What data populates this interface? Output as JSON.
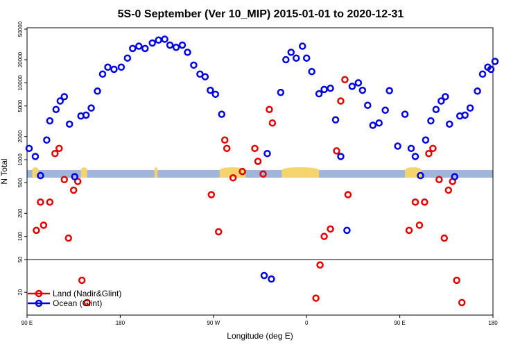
{
  "chart_data": {
    "type": "scatter",
    "title": "5S-0 September (Ver 10_MIP)   2015-01-01 to 2020-12-31",
    "xlabel": "Longitude (deg E)",
    "ylabel": "N Total",
    "x_ticks": [
      {
        "label": "90 E",
        "lon": 90
      },
      {
        "label": "180",
        "lon": 180
      },
      {
        "label": "90 W",
        "lon": 270
      },
      {
        "label": "0",
        "lon": 360
      },
      {
        "label": "90 E",
        "lon": 450
      },
      {
        "label": "180",
        "lon": 540
      }
    ],
    "xlim": [
      90,
      540
    ],
    "y_ticks_upper": [
      "100",
      "200",
      "500",
      "1000",
      "2000",
      "5000",
      "10000",
      "20000",
      "50000"
    ],
    "y_ticks_lower": [
      "20",
      "50"
    ],
    "y_scale": "log",
    "ylim_upper": [
      50,
      50000
    ],
    "ylim_lower": [
      11,
      50
    ],
    "grid": false,
    "legend_position": "bottom-left",
    "land_band_color": "#f5d470",
    "ocean_band_color": "#9fb5da",
    "land_band_segments": [
      [
        95,
        101
      ],
      [
        142,
        148
      ],
      [
        213,
        216
      ],
      [
        276,
        301
      ],
      [
        336,
        372
      ],
      [
        455,
        471
      ]
    ],
    "series": [
      {
        "name": "Land (Nadir&Glint)",
        "color": "#e00000",
        "points": [
          [
            99,
            120
          ],
          [
            103,
            280
          ],
          [
            106,
            140
          ],
          [
            112,
            280
          ],
          [
            117,
            1200
          ],
          [
            121,
            1400
          ],
          [
            126,
            550
          ],
          [
            130,
            95
          ],
          [
            135,
            400
          ],
          [
            139,
            520
          ],
          [
            143,
            28
          ],
          [
            148,
            15
          ],
          [
            268,
            350
          ],
          [
            275,
            115
          ],
          [
            281,
            1800
          ],
          [
            283,
            1400
          ],
          [
            289,
            580
          ],
          [
            298,
            700
          ],
          [
            310,
            1400
          ],
          [
            313,
            950
          ],
          [
            318,
            650
          ],
          [
            324,
            4500
          ],
          [
            327,
            3000
          ],
          [
            369,
            17
          ],
          [
            373,
            43
          ],
          [
            377,
            100
          ],
          [
            383,
            125
          ],
          [
            389,
            1300
          ],
          [
            393,
            5800
          ],
          [
            397,
            11000
          ],
          [
            400,
            350
          ],
          [
            459,
            120
          ],
          [
            465,
            280
          ],
          [
            469,
            140
          ],
          [
            474,
            280
          ],
          [
            478,
            1200
          ],
          [
            482,
            1400
          ],
          [
            488,
            550
          ],
          [
            493,
            95
          ],
          [
            497,
            400
          ],
          [
            501,
            520
          ],
          [
            505,
            28
          ],
          [
            510,
            15
          ]
        ]
      },
      {
        "name": "Ocean (Glint)",
        "color": "#0000e0",
        "points": [
          [
            92,
            1400
          ],
          [
            98,
            1100
          ],
          [
            103,
            620
          ],
          [
            109,
            1800
          ],
          [
            112,
            3200
          ],
          [
            118,
            4500
          ],
          [
            122,
            5800
          ],
          [
            126,
            6600
          ],
          [
            131,
            2900
          ],
          [
            136,
            600
          ],
          [
            142,
            3700
          ],
          [
            147,
            3800
          ],
          [
            152,
            4700
          ],
          [
            158,
            7800
          ],
          [
            163,
            13000
          ],
          [
            168,
            16000
          ],
          [
            174,
            15000
          ],
          [
            181,
            16000
          ],
          [
            187,
            21000
          ],
          [
            192,
            28000
          ],
          [
            198,
            30000
          ],
          [
            204,
            28000
          ],
          [
            211,
            33000
          ],
          [
            217,
            36000
          ],
          [
            223,
            37000
          ],
          [
            228,
            31000
          ],
          [
            234,
            29000
          ],
          [
            240,
            31000
          ],
          [
            245,
            25000
          ],
          [
            251,
            17000
          ],
          [
            257,
            13000
          ],
          [
            262,
            12000
          ],
          [
            267,
            8000
          ],
          [
            272,
            7100
          ],
          [
            278,
            3900
          ],
          [
            319,
            32
          ],
          [
            322,
            1200
          ],
          [
            326,
            29
          ],
          [
            335,
            7500
          ],
          [
            340,
            20000
          ],
          [
            345,
            25000
          ],
          [
            350,
            21000
          ],
          [
            356,
            30000
          ],
          [
            360,
            21000
          ],
          [
            365,
            14000
          ],
          [
            372,
            7200
          ],
          [
            377,
            8200
          ],
          [
            383,
            8500
          ],
          [
            388,
            3300
          ],
          [
            393,
            1100
          ],
          [
            399,
            120
          ],
          [
            404,
            9000
          ],
          [
            410,
            10000
          ],
          [
            414,
            8000
          ],
          [
            419,
            5100
          ],
          [
            424,
            2800
          ],
          [
            430,
            3000
          ],
          [
            436,
            4400
          ],
          [
            440,
            7900
          ],
          [
            448,
            1500
          ],
          [
            455,
            3900
          ],
          [
            461,
            1400
          ],
          [
            465,
            1100
          ],
          [
            470,
            620
          ],
          [
            475,
            1800
          ],
          [
            480,
            3200
          ],
          [
            485,
            4500
          ],
          [
            490,
            5800
          ],
          [
            494,
            6600
          ],
          [
            498,
            2900
          ],
          [
            503,
            600
          ],
          [
            508,
            3700
          ],
          [
            513,
            3800
          ],
          [
            518,
            4700
          ],
          [
            525,
            7800
          ],
          [
            530,
            13000
          ],
          [
            535,
            16000
          ],
          [
            538,
            15000
          ],
          [
            542,
            19000
          ]
        ]
      }
    ]
  }
}
